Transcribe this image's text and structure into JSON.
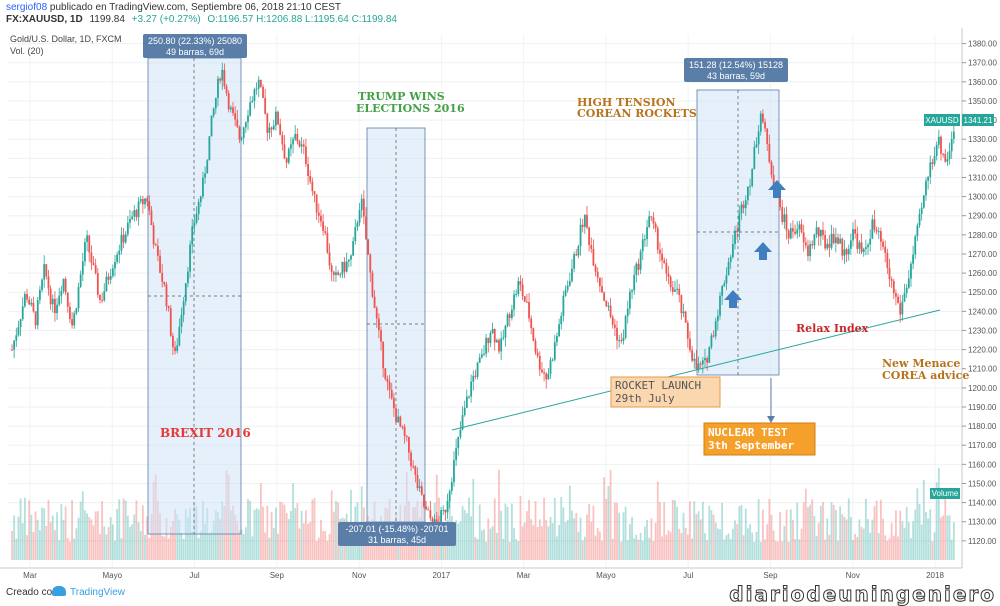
{
  "header": {
    "user": "sergiof08",
    "published": "publicado en TradingView.com, Septiembre 06, 2018 21:10 CEST",
    "symbol_line": "FX:XAUUSD, 1D",
    "last": "1199.84",
    "change": "+3.27 (+0.27%)",
    "ohlc": "O:1196.57 H:1206.88 L:1195.64 C:1199.84"
  },
  "chart_data": {
    "type": "candlestick",
    "title": "Gold/U.S. Dollar, 1D, FXCM",
    "volume_label": "Vol. (20)",
    "symbol_badge": "XAUUSD",
    "last_price_label": "1341.21",
    "volume_badge": "Volume",
    "ylim": [
      1110,
      1385
    ],
    "y_ticks": [
      1120,
      1130,
      1140,
      1150,
      1160,
      1170,
      1180,
      1190,
      1200,
      1210,
      1220,
      1230,
      1240,
      1250,
      1260,
      1270,
      1280,
      1290,
      1300,
      1310,
      1320,
      1330,
      1340,
      1350,
      1360,
      1370,
      1380
    ],
    "x_ticks": [
      "Mar",
      "Mayo",
      "Jul",
      "Sep",
      "Nov",
      "2017",
      "Mar",
      "Mayo",
      "Jul",
      "Sep",
      "Nov",
      "2018"
    ],
    "price_path": [
      [
        0,
        1220
      ],
      [
        3,
        1250
      ],
      [
        5,
        1235
      ],
      [
        7,
        1262
      ],
      [
        9,
        1240
      ],
      [
        11,
        1258
      ],
      [
        13,
        1232
      ],
      [
        16,
        1278
      ],
      [
        19,
        1245
      ],
      [
        22,
        1268
      ],
      [
        26,
        1290
      ],
      [
        29,
        1300
      ],
      [
        31,
        1270
      ],
      [
        33,
        1250
      ],
      [
        35,
        1215
      ],
      [
        37,
        1250
      ],
      [
        39,
        1285
      ],
      [
        41,
        1305
      ],
      [
        43,
        1340
      ],
      [
        45,
        1368
      ],
      [
        47,
        1345
      ],
      [
        49,
        1330
      ],
      [
        51,
        1348
      ],
      [
        53,
        1360
      ],
      [
        55,
        1335
      ],
      [
        57,
        1342
      ],
      [
        59,
        1318
      ],
      [
        61,
        1332
      ],
      [
        63,
        1322
      ],
      [
        65,
        1298
      ],
      [
        67,
        1285
      ],
      [
        69,
        1255
      ],
      [
        71,
        1262
      ],
      [
        73,
        1268
      ],
      [
        75,
        1300
      ],
      [
        77,
        1260
      ],
      [
        79,
        1225
      ],
      [
        81,
        1198
      ],
      [
        83,
        1182
      ],
      [
        85,
        1170
      ],
      [
        87,
        1150
      ],
      [
        89,
        1135
      ],
      [
        91,
        1128
      ],
      [
        93,
        1135
      ],
      [
        95,
        1160
      ],
      [
        97,
        1185
      ],
      [
        99,
        1205
      ],
      [
        101,
        1215
      ],
      [
        103,
        1232
      ],
      [
        105,
        1220
      ],
      [
        107,
        1240
      ],
      [
        109,
        1255
      ],
      [
        111,
        1240
      ],
      [
        113,
        1215
      ],
      [
        115,
        1205
      ],
      [
        117,
        1225
      ],
      [
        119,
        1250
      ],
      [
        121,
        1268
      ],
      [
        123,
        1290
      ],
      [
        125,
        1268
      ],
      [
        127,
        1250
      ],
      [
        129,
        1235
      ],
      [
        131,
        1222
      ],
      [
        133,
        1250
      ],
      [
        135,
        1268
      ],
      [
        137,
        1290
      ],
      [
        139,
        1275
      ],
      [
        141,
        1255
      ],
      [
        143,
        1250
      ],
      [
        145,
        1230
      ],
      [
        147,
        1210
      ],
      [
        149,
        1212
      ],
      [
        151,
        1232
      ],
      [
        153,
        1255
      ],
      [
        155,
        1275
      ],
      [
        157,
        1295
      ],
      [
        159,
        1312
      ],
      [
        161,
        1345
      ],
      [
        163,
        1318
      ],
      [
        165,
        1295
      ],
      [
        167,
        1280
      ],
      [
        169,
        1285
      ],
      [
        171,
        1270
      ],
      [
        173,
        1282
      ],
      [
        175,
        1275
      ],
      [
        177,
        1280
      ],
      [
        179,
        1270
      ],
      [
        181,
        1282
      ],
      [
        183,
        1268
      ],
      [
        185,
        1285
      ],
      [
        187,
        1275
      ],
      [
        189,
        1255
      ],
      [
        191,
        1240
      ],
      [
        193,
        1260
      ],
      [
        195,
        1285
      ],
      [
        197,
        1312
      ],
      [
        199,
        1330
      ],
      [
        201,
        1318
      ],
      [
        203,
        1342
      ]
    ],
    "annotations": [
      {
        "name": "brexit",
        "label": "BREXIT 2016",
        "measure": "250.80 (22.33%) 25080",
        "bars": "49 barras, 69d"
      },
      {
        "name": "trump",
        "label_lines": [
          "TRUMP WINS",
          "ELECTIONS 2016"
        ],
        "measure": "-207.01 (-15.48%) -20701",
        "bars": "31 barras, 45d"
      },
      {
        "name": "korea",
        "label_lines": [
          "HIGH TENSION",
          "COREAN ROCKETS"
        ],
        "measure": "151.28 (12.54%) 15128",
        "bars": "43 barras, 59d"
      },
      {
        "name": "rocket",
        "label_lines": [
          "ROCKET LAUNCH",
          "29th July"
        ]
      },
      {
        "name": "nuclear",
        "label_lines": [
          "NUCLEAR TEST",
          "3th September"
        ]
      },
      {
        "name": "relax",
        "label": "Relax Index"
      },
      {
        "name": "menace",
        "label_lines": [
          "New Menace",
          "COREA advice"
        ]
      }
    ],
    "colors": {
      "up": "#26a69a",
      "down": "#ef5350",
      "box_fill": "#cfe3f8",
      "box_stroke": "#5a7ea8",
      "trend": "#26a69a"
    }
  },
  "footer": {
    "created": "Creado con",
    "tv_name": "TradingView",
    "brand": "diariodeuningeniero"
  }
}
